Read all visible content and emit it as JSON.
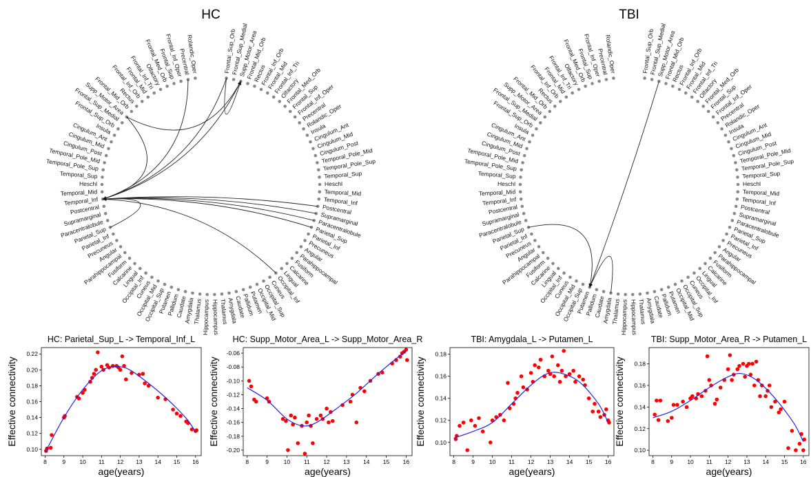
{
  "groups": [
    {
      "title": "HC"
    },
    {
      "title": "TBI"
    }
  ],
  "regions_left": [
    "Rolandic_Oper",
    "Precentral",
    "Frontal_Inf_Oper",
    "Frontal_Sup",
    "Frontal_Med_Orb",
    "Olfactory",
    "Frontal_Inf_Tri",
    "Frontal_Mid",
    "Frontal_Inf_Orb",
    "Rectus",
    "Frontal_Mid_Orb",
    "Supp_Motor_Area",
    "Frontal_Sup_Medial",
    "Frontal_Sup_Orb"
  ],
  "regions_right": [
    "Frontal_Sup_Orb",
    "Frontal_Sup_Medial",
    "Supp_Motor_Area",
    "Frontal_Mid_Orb",
    "Rectus",
    "Frontal_Inf_Orb",
    "Frontal_Mid",
    "Frontal_Inf_Tri",
    "Olfactory",
    "Frontal_Med_Orb",
    "Frontal_Sup",
    "Frontal_Inf_Oper",
    "Precentral",
    "Rolandic_Oper"
  ],
  "regions_left_side": [
    "Insula",
    "Cingulum_Ant",
    "Cingulum_Mid",
    "Cingulum_Post",
    "Temporal_Pole_Mid",
    "Temporal_Pole_Sup",
    "Temporal_Sup",
    "Heschl",
    "Temporal_Mid",
    "Temporal_Inf",
    "Postcentral",
    "Supramarginal",
    "Paracentralobule",
    "Parietal_Sup",
    "Parietal_Inf",
    "Precuneus",
    "Angular",
    "Parahippocampal",
    "Fusiform",
    "Calcarine",
    "Lingual",
    "Occipital_Inf",
    "Cuneus",
    "Occipital_Mid",
    "Occipital_Sup",
    "Putamen",
    "Pallidum",
    "Caudate",
    "Amygdala",
    "Thalamus",
    "Hippocampus"
  ],
  "regions_right_side": [
    "Hippocampus",
    "Thalamus",
    "Amygdala",
    "Caudate",
    "Pallidum",
    "Putamen",
    "Occipital_Mid",
    "Occipital_Sup",
    "Cuneus",
    "Occipital_Inf",
    "Lingual",
    "Calcarine",
    "Fusiform",
    "Parahippocampal",
    "Angular",
    "Precuneus",
    "Parietal_Inf",
    "Parietal_Sup",
    "Paracentralobule",
    "Supramarginal",
    "Postcentral",
    "Temporal_Inf",
    "Temporal_Mid",
    "Heschl",
    "Temporal_Sup",
    "Temporal_Pole_Sup",
    "Temporal_Pole_Mid",
    "Cingulum_Post",
    "Cingulum_Mid",
    "Cingulum_Ant",
    "Insula"
  ],
  "connections": {
    "HC": [
      {
        "from": "L:Parietal_Sup",
        "to": "L:Temporal_Inf"
      },
      {
        "from": "L:Precentral",
        "to": "L:Temporal_Inf"
      },
      {
        "from": "L:Supp_Motor_Area",
        "to": "L:Temporal_Inf"
      },
      {
        "from": "R:Frontal_Sup_Orb",
        "to": "L:Temporal_Inf"
      },
      {
        "from": "R:Supp_Motor_Area",
        "to": "L:Temporal_Inf"
      },
      {
        "from": "R:Postcentral",
        "to": "L:Temporal_Inf"
      },
      {
        "from": "R:Supramarginal",
        "to": "L:Temporal_Inf"
      },
      {
        "from": "R:Paracentralobule",
        "to": "L:Temporal_Inf"
      },
      {
        "from": "R:Parietal_Sup",
        "to": "L:Temporal_Inf"
      },
      {
        "from": "R:Occipital_Inf",
        "to": "L:Temporal_Inf"
      },
      {
        "from": "L:Supp_Motor_Area",
        "to": "R:Supp_Motor_Area"
      },
      {
        "from": "R:Frontal_Sup_Orb",
        "to": "R:Supp_Motor_Area"
      }
    ],
    "TBI": [
      {
        "from": "L:Amygdala",
        "to": "L:Putamen"
      },
      {
        "from": "R:Supp_Motor_Area",
        "to": "L:Putamen"
      },
      {
        "from": "L:Parietal_Sup",
        "to": "L:Putamen"
      }
    ]
  },
  "chart_data": [
    {
      "type": "scatter",
      "title": "HC: Parietal_Sup_L -> Temporal_Inf_L",
      "xlabel": "age(years)",
      "ylabel": "Effective connectivity",
      "xlim": [
        7.8,
        16.3
      ],
      "ylim": [
        0.092,
        0.228
      ],
      "xticks": [
        8,
        9,
        10,
        11,
        12,
        13,
        14,
        15,
        16
      ],
      "yticks": [
        0.1,
        0.12,
        0.14,
        0.16,
        0.18,
        0.2,
        0.22
      ],
      "point_color": "#ff0000",
      "fit_color": "#2222ee",
      "points": [
        [
          8.05,
          0.098
        ],
        [
          8.1,
          0.101
        ],
        [
          8.3,
          0.102
        ],
        [
          8.35,
          0.118
        ],
        [
          9.0,
          0.14
        ],
        [
          9.05,
          0.142
        ],
        [
          9.7,
          0.166
        ],
        [
          9.8,
          0.164
        ],
        [
          10.0,
          0.171
        ],
        [
          10.1,
          0.175
        ],
        [
          10.4,
          0.185
        ],
        [
          10.5,
          0.19
        ],
        [
          10.6,
          0.195
        ],
        [
          10.7,
          0.2
        ],
        [
          10.8,
          0.222
        ],
        [
          11.0,
          0.204
        ],
        [
          11.1,
          0.2
        ],
        [
          11.3,
          0.206
        ],
        [
          11.4,
          0.203
        ],
        [
          11.6,
          0.205
        ],
        [
          11.8,
          0.205
        ],
        [
          11.9,
          0.203
        ],
        [
          12.0,
          0.2
        ],
        [
          12.1,
          0.217
        ],
        [
          12.2,
          0.205
        ],
        [
          12.3,
          0.188
        ],
        [
          12.6,
          0.196
        ],
        [
          13.0,
          0.194
        ],
        [
          13.2,
          0.195
        ],
        [
          13.3,
          0.183
        ],
        [
          13.5,
          0.18
        ],
        [
          14.0,
          0.165
        ],
        [
          14.4,
          0.163
        ],
        [
          14.8,
          0.15
        ],
        [
          15.0,
          0.145
        ],
        [
          15.2,
          0.142
        ],
        [
          15.5,
          0.135
        ],
        [
          15.6,
          0.133
        ],
        [
          15.8,
          0.125
        ],
        [
          16.0,
          0.123
        ],
        [
          16.05,
          0.124
        ]
      ],
      "fit": [
        [
          8.0,
          0.096
        ],
        [
          9.0,
          0.14
        ],
        [
          10.0,
          0.175
        ],
        [
          11.0,
          0.199
        ],
        [
          11.8,
          0.204
        ],
        [
          12.5,
          0.2
        ],
        [
          13.5,
          0.183
        ],
        [
          14.5,
          0.163
        ],
        [
          15.5,
          0.139
        ],
        [
          16.0,
          0.122
        ]
      ]
    },
    {
      "type": "scatter",
      "title": "HC: Supp_Motor_Area_L -> Supp_Motor_Area_R",
      "xlabel": "age(years)",
      "ylabel": "Effective connectivity",
      "xlim": [
        7.8,
        16.3
      ],
      "ylim": [
        -0.208,
        -0.052
      ],
      "xticks": [
        8,
        9,
        10,
        11,
        12,
        13,
        14,
        15,
        16
      ],
      "yticks": [
        -0.2,
        -0.18,
        -0.16,
        -0.14,
        -0.12,
        -0.1,
        -0.08,
        -0.06
      ],
      "point_color": "#ff0000",
      "fit_color": "#2222ee",
      "points": [
        [
          8.1,
          -0.1
        ],
        [
          8.2,
          -0.108
        ],
        [
          8.35,
          -0.127
        ],
        [
          8.45,
          -0.13
        ],
        [
          9.0,
          -0.125
        ],
        [
          9.1,
          -0.13
        ],
        [
          9.8,
          -0.155
        ],
        [
          9.95,
          -0.158
        ],
        [
          10.05,
          -0.2
        ],
        [
          10.2,
          -0.15
        ],
        [
          10.3,
          -0.163
        ],
        [
          10.4,
          -0.153
        ],
        [
          10.55,
          -0.19
        ],
        [
          10.75,
          -0.165
        ],
        [
          10.9,
          -0.205
        ],
        [
          11.0,
          -0.16
        ],
        [
          11.1,
          -0.15
        ],
        [
          11.2,
          -0.165
        ],
        [
          11.3,
          -0.19
        ],
        [
          11.5,
          -0.155
        ],
        [
          11.7,
          -0.15
        ],
        [
          11.8,
          -0.155
        ],
        [
          12.0,
          -0.14
        ],
        [
          12.1,
          -0.16
        ],
        [
          12.2,
          -0.145
        ],
        [
          12.3,
          -0.158
        ],
        [
          12.8,
          -0.135
        ],
        [
          13.2,
          -0.13
        ],
        [
          13.3,
          -0.12
        ],
        [
          13.5,
          -0.16
        ],
        [
          13.7,
          -0.11
        ],
        [
          13.9,
          -0.115
        ],
        [
          14.2,
          -0.1
        ],
        [
          14.6,
          -0.09
        ],
        [
          14.8,
          -0.088
        ],
        [
          15.3,
          -0.075
        ],
        [
          15.5,
          -0.07
        ],
        [
          15.7,
          -0.065
        ],
        [
          15.8,
          -0.06
        ],
        [
          15.9,
          -0.058
        ],
        [
          16.0,
          -0.055
        ],
        [
          16.05,
          -0.07
        ]
      ],
      "fit": [
        [
          8.0,
          -0.11
        ],
        [
          9.0,
          -0.128
        ],
        [
          10.0,
          -0.155
        ],
        [
          10.8,
          -0.165
        ],
        [
          11.5,
          -0.16
        ],
        [
          12.5,
          -0.14
        ],
        [
          13.5,
          -0.118
        ],
        [
          14.5,
          -0.092
        ],
        [
          15.5,
          -0.068
        ],
        [
          16.0,
          -0.057
        ]
      ]
    },
    {
      "type": "scatter",
      "title": "TBI: Amygdala_L -> Putamen_L",
      "xlabel": "age(years)",
      "ylabel": "Effective connectivity",
      "xlim": [
        7.8,
        16.3
      ],
      "ylim": [
        0.088,
        0.186
      ],
      "xticks": [
        8,
        9,
        10,
        11,
        12,
        13,
        14,
        15,
        16
      ],
      "yticks": [
        0.1,
        0.12,
        0.14,
        0.16,
        0.18
      ],
      "point_color": "#ff0000",
      "fit_color": "#2222ee",
      "points": [
        [
          8.1,
          0.103
        ],
        [
          8.15,
          0.106
        ],
        [
          8.3,
          0.115
        ],
        [
          8.5,
          0.118
        ],
        [
          8.7,
          0.093
        ],
        [
          8.9,
          0.12
        ],
        [
          9.1,
          0.115
        ],
        [
          9.3,
          0.122
        ],
        [
          9.5,
          0.11
        ],
        [
          9.9,
          0.1
        ],
        [
          10.0,
          0.12
        ],
        [
          10.2,
          0.123
        ],
        [
          10.4,
          0.125
        ],
        [
          10.6,
          0.12
        ],
        [
          10.8,
          0.154
        ],
        [
          10.9,
          0.131
        ],
        [
          11.1,
          0.135
        ],
        [
          11.2,
          0.14
        ],
        [
          11.3,
          0.145
        ],
        [
          11.5,
          0.16
        ],
        [
          11.6,
          0.15
        ],
        [
          11.8,
          0.148
        ],
        [
          12.0,
          0.163
        ],
        [
          12.1,
          0.155
        ],
        [
          12.2,
          0.17
        ],
        [
          12.4,
          0.168
        ],
        [
          12.5,
          0.175
        ],
        [
          12.7,
          0.16
        ],
        [
          12.9,
          0.165
        ],
        [
          13.0,
          0.162
        ],
        [
          13.1,
          0.178
        ],
        [
          13.2,
          0.16
        ],
        [
          13.4,
          0.17
        ],
        [
          13.5,
          0.155
        ],
        [
          13.6,
          0.165
        ],
        [
          13.7,
          0.183
        ],
        [
          13.8,
          0.16
        ],
        [
          14.0,
          0.162
        ],
        [
          14.2,
          0.165
        ],
        [
          14.3,
          0.155
        ],
        [
          14.5,
          0.16
        ],
        [
          14.7,
          0.157
        ],
        [
          14.8,
          0.152
        ],
        [
          15.0,
          0.14
        ],
        [
          15.2,
          0.128
        ],
        [
          15.3,
          0.135
        ],
        [
          15.5,
          0.128
        ],
        [
          15.6,
          0.123
        ],
        [
          15.8,
          0.125
        ],
        [
          15.9,
          0.13
        ],
        [
          16.0,
          0.12
        ],
        [
          16.05,
          0.118
        ]
      ],
      "fit": [
        [
          8.0,
          0.104
        ],
        [
          9.0,
          0.11
        ],
        [
          10.0,
          0.118
        ],
        [
          11.0,
          0.135
        ],
        [
          12.0,
          0.152
        ],
        [
          12.8,
          0.162
        ],
        [
          13.5,
          0.163
        ],
        [
          14.5,
          0.155
        ],
        [
          15.5,
          0.135
        ],
        [
          16.0,
          0.118
        ]
      ]
    },
    {
      "type": "scatter",
      "title": "TBI: Supp_Motor_Area_R -> Putamen_L",
      "xlabel": "age(years)",
      "ylabel": "Effective connectivity",
      "xlim": [
        7.8,
        16.3
      ],
      "ylim": [
        0.095,
        0.195
      ],
      "xticks": [
        8,
        9,
        10,
        11,
        12,
        13,
        14,
        15,
        16
      ],
      "yticks": [
        0.1,
        0.12,
        0.14,
        0.16,
        0.18
      ],
      "point_color": "#ff0000",
      "fit_color": "#2222ee",
      "points": [
        [
          8.1,
          0.133
        ],
        [
          8.2,
          0.146
        ],
        [
          8.3,
          0.128
        ],
        [
          8.4,
          0.146
        ],
        [
          8.8,
          0.127
        ],
        [
          9.0,
          0.13
        ],
        [
          9.1,
          0.142
        ],
        [
          9.3,
          0.142
        ],
        [
          9.6,
          0.145
        ],
        [
          9.8,
          0.14
        ],
        [
          10.0,
          0.148
        ],
        [
          10.1,
          0.15
        ],
        [
          10.3,
          0.148
        ],
        [
          10.4,
          0.152
        ],
        [
          10.6,
          0.15
        ],
        [
          10.8,
          0.155
        ],
        [
          10.9,
          0.187
        ],
        [
          11.0,
          0.165
        ],
        [
          11.1,
          0.16
        ],
        [
          11.3,
          0.143
        ],
        [
          11.4,
          0.147
        ],
        [
          11.6,
          0.158
        ],
        [
          11.8,
          0.165
        ],
        [
          12.0,
          0.175
        ],
        [
          12.1,
          0.188
        ],
        [
          12.2,
          0.165
        ],
        [
          12.3,
          0.17
        ],
        [
          12.5,
          0.175
        ],
        [
          12.6,
          0.178
        ],
        [
          12.8,
          0.18
        ],
        [
          12.9,
          0.168
        ],
        [
          13.0,
          0.178
        ],
        [
          13.1,
          0.18
        ],
        [
          13.2,
          0.17
        ],
        [
          13.3,
          0.18
        ],
        [
          13.4,
          0.16
        ],
        [
          13.5,
          0.182
        ],
        [
          13.6,
          0.165
        ],
        [
          13.7,
          0.15
        ],
        [
          13.8,
          0.16
        ],
        [
          14.0,
          0.15
        ],
        [
          14.1,
          0.155
        ],
        [
          14.2,
          0.16
        ],
        [
          14.3,
          0.14
        ],
        [
          14.5,
          0.145
        ],
        [
          14.7,
          0.135
        ],
        [
          14.8,
          0.138
        ],
        [
          15.0,
          0.145
        ],
        [
          15.2,
          0.102
        ],
        [
          15.4,
          0.118
        ],
        [
          15.6,
          0.1
        ],
        [
          15.8,
          0.106
        ],
        [
          15.9,
          0.115
        ],
        [
          16.0,
          0.1
        ],
        [
          16.05,
          0.11
        ]
      ],
      "fit": [
        [
          8.0,
          0.13
        ],
        [
          9.0,
          0.136
        ],
        [
          10.0,
          0.146
        ],
        [
          11.0,
          0.158
        ],
        [
          12.0,
          0.168
        ],
        [
          12.7,
          0.171
        ],
        [
          13.5,
          0.165
        ],
        [
          14.5,
          0.148
        ],
        [
          15.5,
          0.125
        ],
        [
          16.0,
          0.108
        ]
      ]
    }
  ]
}
